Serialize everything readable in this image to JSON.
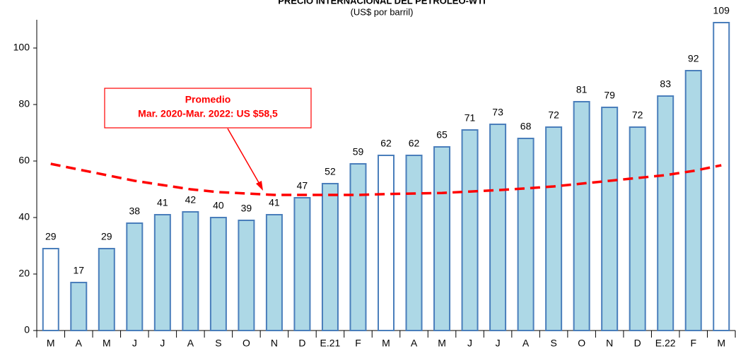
{
  "chart_data": {
    "type": "bar",
    "title": "PRECIO INTERNACIONAL DEL PETROLEO-WTI",
    "subtitle": "(US$ por barril)",
    "categories": [
      "M",
      "A",
      "M",
      "J",
      "J",
      "A",
      "S",
      "O",
      "N",
      "D",
      "E.21",
      "F",
      "M",
      "A",
      "M",
      "J",
      "J",
      "A",
      "S",
      "O",
      "N",
      "D",
      "E.22",
      "F",
      "M"
    ],
    "values": [
      29,
      17,
      29,
      38,
      41,
      42,
      40,
      39,
      41,
      47,
      52,
      59,
      62,
      62,
      65,
      71,
      73,
      68,
      72,
      81,
      79,
      72,
      83,
      92,
      109
    ],
    "colors": [
      "#ffffff",
      "#add8e6",
      "#add8e6",
      "#add8e6",
      "#add8e6",
      "#add8e6",
      "#add8e6",
      "#add8e6",
      "#add8e6",
      "#add8e6",
      "#add8e6",
      "#add8e6",
      "#ffffff",
      "#add8e6",
      "#add8e6",
      "#add8e6",
      "#add8e6",
      "#add8e6",
      "#add8e6",
      "#add8e6",
      "#add8e6",
      "#add8e6",
      "#add8e6",
      "#add8e6",
      "#ffffff"
    ],
    "edge_color": "#4a7ebb",
    "trend_values": [
      59,
      57,
      55,
      53,
      51.5,
      50,
      49,
      48.5,
      48,
      48,
      48,
      48,
      48.3,
      48.5,
      48.7,
      49.2,
      49.7,
      50.3,
      51,
      52,
      53,
      54,
      55,
      56.5,
      58.5
    ],
    "trend_color": "#ff0000",
    "annotation": [
      "Promedio",
      "Mar. 2020-Mar. 2022: US $58,5"
    ],
    "ylim": [
      0,
      110
    ],
    "yticks": [
      0,
      20,
      40,
      60,
      80,
      100
    ]
  }
}
